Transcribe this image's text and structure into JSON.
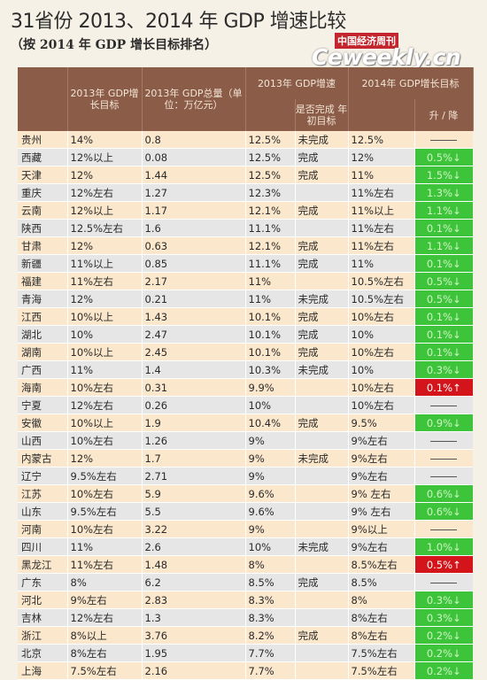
{
  "title": "31省份 2013、2014 年 GDP 增速比较",
  "subtitle": "（按 2014 年 GDP 增长目标排名）",
  "watermark": {
    "cn": "中国经济周刊",
    "en": "Ceweekly.cn"
  },
  "headers": {
    "target_2013": "2013年 GDP增长目标",
    "gdp_total_2013": "2013年 GDP总量（单位：万亿元）",
    "growth_2013_group": "2013年 GDP增速",
    "completed": "是否完成 年初目标",
    "target_2014_group": "2014年 GDP增长目标",
    "change": "升 / 降"
  },
  "colors": {
    "down": "#3ec43a",
    "up": "#d4141b",
    "header": "#8b5c48"
  },
  "rows": [
    {
      "province": "贵州",
      "target2013": "14%",
      "gdp2013": "0.8",
      "growth2013": "12.5%",
      "completed": "未完成",
      "target2014": "12.5%",
      "change": "",
      "dir": "none"
    },
    {
      "province": "西藏",
      "target2013": "12%以上",
      "gdp2013": "0.08",
      "growth2013": "12.5%",
      "completed": "完成",
      "target2014": "12%",
      "change": "0.5%↓",
      "dir": "down"
    },
    {
      "province": "天津",
      "target2013": "12%",
      "gdp2013": "1.44",
      "growth2013": "12.5%",
      "completed": "完成",
      "target2014": "11%",
      "change": "1.5%↓",
      "dir": "down"
    },
    {
      "province": "重庆",
      "target2013": "12%左右",
      "gdp2013": "1.27",
      "growth2013": "12.3%",
      "completed": "",
      "target2014": "11%左右",
      "change": "1.3%↓",
      "dir": "down"
    },
    {
      "province": "云南",
      "target2013": "12%以上",
      "gdp2013": "1.17",
      "growth2013": "12.1%",
      "completed": "完成",
      "target2014": "11%以上",
      "change": "1.1%↓",
      "dir": "down"
    },
    {
      "province": "陕西",
      "target2013": "12.5%左右",
      "gdp2013": "1.6",
      "growth2013": "11.1%",
      "completed": "",
      "target2014": "11%左右",
      "change": "0.1%↓",
      "dir": "down"
    },
    {
      "province": "甘肃",
      "target2013": "12%",
      "gdp2013": "0.63",
      "growth2013": "12.1%",
      "completed": "完成",
      "target2014": "11%左右",
      "change": "1.1%↓",
      "dir": "down"
    },
    {
      "province": "新疆",
      "target2013": "11%以上",
      "gdp2013": "0.85",
      "growth2013": "11.1%",
      "completed": "完成",
      "target2014": "11%",
      "change": "0.1%↓",
      "dir": "down"
    },
    {
      "province": "福建",
      "target2013": "11%左右",
      "gdp2013": "2.17",
      "growth2013": "11%",
      "completed": "",
      "target2014": "10.5%左右",
      "change": "0.5%↓",
      "dir": "down"
    },
    {
      "province": "青海",
      "target2013": "12%",
      "gdp2013": "0.21",
      "growth2013": "11%",
      "completed": "未完成",
      "target2014": "10.5%左右",
      "change": "0.5%↓",
      "dir": "down"
    },
    {
      "province": "江西",
      "target2013": "10%以上",
      "gdp2013": "1.43",
      "growth2013": "10.1%",
      "completed": "完成",
      "target2014": "10%左右",
      "change": "0.1%↓",
      "dir": "down"
    },
    {
      "province": "湖北",
      "target2013": "10%",
      "gdp2013": "2.47",
      "growth2013": "10.1%",
      "completed": "完成",
      "target2014": "10%",
      "change": "0.1%↓",
      "dir": "down"
    },
    {
      "province": "湖南",
      "target2013": "10%以上",
      "gdp2013": "2.45",
      "growth2013": "10.1%",
      "completed": "完成",
      "target2014": "10%左右",
      "change": "0.1%↓",
      "dir": "down"
    },
    {
      "province": "广西",
      "target2013": "11%",
      "gdp2013": "1.4",
      "growth2013": "10.3%",
      "completed": "未完成",
      "target2014": "10%",
      "change": "0.3%↓",
      "dir": "down"
    },
    {
      "province": "海南",
      "target2013": "10%左右",
      "gdp2013": "0.31",
      "growth2013": "9.9%",
      "completed": "",
      "target2014": "10%左右",
      "change": "0.1%↑",
      "dir": "up"
    },
    {
      "province": "宁夏",
      "target2013": "12%左右",
      "gdp2013": "0.26",
      "growth2013": "10%",
      "completed": "",
      "target2014": "10%左右",
      "change": "",
      "dir": "none"
    },
    {
      "province": "安徽",
      "target2013": "10%以上",
      "gdp2013": "1.9",
      "growth2013": "10.4%",
      "completed": "完成",
      "target2014": "9.5%",
      "change": "0.9%↓",
      "dir": "down"
    },
    {
      "province": "山西",
      "target2013": "10%左右",
      "gdp2013": "1.26",
      "growth2013": "9%",
      "completed": "",
      "target2014": "9%左右",
      "change": "",
      "dir": "none"
    },
    {
      "province": "内蒙古",
      "target2013": "12%",
      "gdp2013": "1.7",
      "growth2013": "9%",
      "completed": "未完成",
      "target2014": "9%左右",
      "change": "",
      "dir": "none"
    },
    {
      "province": "辽宁",
      "target2013": "9.5%左右",
      "gdp2013": "2.71",
      "growth2013": "9%",
      "completed": "",
      "target2014": "9%左右",
      "change": "",
      "dir": "none"
    },
    {
      "province": "江苏",
      "target2013": "10%左右",
      "gdp2013": "5.9",
      "growth2013": "9.6%",
      "completed": "",
      "target2014": "9% 左右",
      "change": "0.6%↓",
      "dir": "down"
    },
    {
      "province": "山东",
      "target2013": "9.5%左右",
      "gdp2013": "5.5",
      "growth2013": "9.6%",
      "completed": "",
      "target2014": "9% 左右",
      "change": "0.6%↓",
      "dir": "down"
    },
    {
      "province": "河南",
      "target2013": "10%左右",
      "gdp2013": "3.22",
      "growth2013": "9%",
      "completed": "",
      "target2014": "9%以上",
      "change": "",
      "dir": "none"
    },
    {
      "province": "四川",
      "target2013": "11%",
      "gdp2013": "2.6",
      "growth2013": "10%",
      "completed": "未完成",
      "target2014": "9%左右",
      "change": "1.0%↓",
      "dir": "down"
    },
    {
      "province": "黑龙江",
      "target2013": "11%左右",
      "gdp2013": "1.48",
      "growth2013": "8%",
      "completed": "",
      "target2014": "8.5%左右",
      "change": "0.5%↑",
      "dir": "up"
    },
    {
      "province": "广东",
      "target2013": "8%",
      "gdp2013": "6.2",
      "growth2013": "8.5%",
      "completed": "完成",
      "target2014": "8.5%",
      "change": "",
      "dir": "none"
    },
    {
      "province": "河北",
      "target2013": "9%左右",
      "gdp2013": "2.83",
      "growth2013": "8.3%",
      "completed": "",
      "target2014": "8%",
      "change": "0.3%↓",
      "dir": "down"
    },
    {
      "province": "吉林",
      "target2013": "12%左右",
      "gdp2013": "1.3",
      "growth2013": "8.3%",
      "completed": "",
      "target2014": "8%左右",
      "change": "0.3%↓",
      "dir": "down"
    },
    {
      "province": "浙江",
      "target2013": "8%以上",
      "gdp2013": "3.76",
      "growth2013": "8.2%",
      "completed": "完成",
      "target2014": "8%左右",
      "change": "0.2%↓",
      "dir": "down"
    },
    {
      "province": "北京",
      "target2013": "8%左右",
      "gdp2013": "1.95",
      "growth2013": "7.7%",
      "completed": "",
      "target2014": "7.5%左右",
      "change": "0.2%↓",
      "dir": "down"
    },
    {
      "province": "上海",
      "target2013": "7.5%左右",
      "gdp2013": "2.16",
      "growth2013": "7.7%",
      "completed": "",
      "target2014": "7.5%左右",
      "change": "0.2%↓",
      "dir": "down"
    }
  ]
}
